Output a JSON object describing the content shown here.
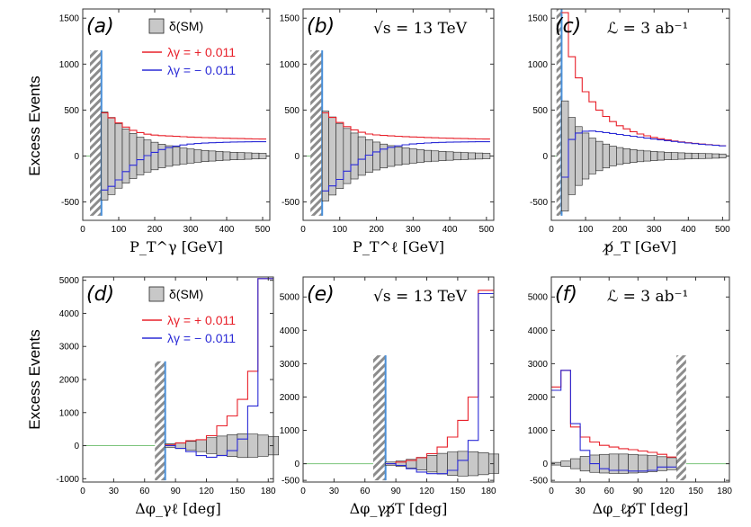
{
  "y_axis_label": "Excess Events",
  "legend": {
    "sm": "δ(SM)",
    "plus": "λγ = + 0.011",
    "minus": "λγ = − 0.011",
    "plus_color": "#e8202a",
    "minus_color": "#2b2bd6",
    "band_color": "#c8c8c8"
  },
  "chart_data": [
    {
      "id": "a",
      "type": "histogram",
      "panel_label": "(a)",
      "annotation": "",
      "xlabel": "P_T^γ [GeV]",
      "xlim": [
        0,
        520
      ],
      "ylim": [
        -700,
        1600
      ],
      "xticks": [
        0,
        100,
        200,
        300,
        400,
        500
      ],
      "yticks": [
        -500,
        0,
        500,
        1000,
        1500
      ],
      "cut_region": [
        20,
        52
      ],
      "cut_line": 52,
      "hatch_ylim": [
        -650,
        1150
      ],
      "bin_edges": [
        52,
        70,
        90,
        110,
        130,
        150,
        170,
        190,
        210,
        230,
        250,
        270,
        290,
        310,
        330,
        350,
        370,
        390,
        410,
        430,
        450,
        470,
        490,
        510
      ],
      "sm_band": [
        480,
        420,
        350,
        295,
        245,
        205,
        175,
        150,
        128,
        112,
        98,
        87,
        77,
        68,
        61,
        55,
        50,
        45,
        41,
        38,
        35,
        32,
        30
      ],
      "plus": [
        470,
        415,
        360,
        315,
        280,
        255,
        238,
        228,
        222,
        218,
        214,
        210,
        206,
        203,
        200,
        198,
        196,
        194,
        192,
        190,
        188,
        186,
        185
      ],
      "minus": [
        -370,
        -330,
        -260,
        -170,
        -100,
        -40,
        5,
        40,
        70,
        92,
        108,
        120,
        130,
        136,
        141,
        145,
        148,
        150,
        152,
        153,
        154,
        155,
        155
      ],
      "show_legend": true
    },
    {
      "id": "b",
      "type": "histogram",
      "panel_label": "(b)",
      "annotation": "√s = 13 TeV",
      "xlabel": "P_T^ℓ [GeV]",
      "xlim": [
        0,
        520
      ],
      "ylim": [
        -700,
        1600
      ],
      "xticks": [
        0,
        100,
        200,
        300,
        400,
        500
      ],
      "yticks": [
        -500,
        0,
        500,
        1000,
        1500
      ],
      "cut_region": [
        20,
        52
      ],
      "cut_line": 52,
      "hatch_ylim": [
        -650,
        1150
      ],
      "bin_edges": [
        52,
        70,
        90,
        110,
        130,
        150,
        170,
        190,
        210,
        230,
        250,
        270,
        290,
        310,
        330,
        350,
        370,
        390,
        410,
        430,
        450,
        470,
        490,
        510
      ],
      "sm_band": [
        490,
        425,
        355,
        300,
        250,
        210,
        178,
        152,
        130,
        113,
        99,
        88,
        78,
        69,
        62,
        56,
        50,
        46,
        42,
        38,
        35,
        33,
        30
      ],
      "plus": [
        470,
        420,
        365,
        320,
        285,
        258,
        240,
        230,
        224,
        219,
        215,
        211,
        207,
        204,
        201,
        198,
        196,
        194,
        192,
        190,
        188,
        186,
        185
      ],
      "minus": [
        -380,
        -325,
        -255,
        -165,
        -95,
        -35,
        10,
        45,
        75,
        95,
        110,
        122,
        131,
        137,
        142,
        146,
        149,
        151,
        152,
        153,
        154,
        155,
        155
      ],
      "show_legend": false
    },
    {
      "id": "c",
      "type": "histogram",
      "panel_label": "(c)",
      "annotation": "ℒ = 3 ab⁻¹",
      "xlabel": "p̸_T [GeV]",
      "xlim": [
        0,
        520
      ],
      "ylim": [
        -700,
        1600
      ],
      "xticks": [
        0,
        100,
        200,
        300,
        400,
        500
      ],
      "yticks": [
        -500,
        0,
        500,
        1000,
        1500
      ],
      "cut_region": [
        15,
        30
      ],
      "cut_line": 30,
      "hatch_ylim": [
        -650,
        1600
      ],
      "bin_edges": [
        30,
        50,
        70,
        90,
        110,
        130,
        150,
        170,
        190,
        210,
        230,
        250,
        270,
        290,
        310,
        330,
        350,
        370,
        390,
        410,
        430,
        450,
        470,
        490,
        510
      ],
      "sm_band": [
        600,
        420,
        320,
        250,
        195,
        160,
        130,
        108,
        92,
        80,
        70,
        62,
        55,
        50,
        45,
        41,
        38,
        35,
        32,
        30,
        28,
        26,
        24,
        22
      ],
      "plus": [
        1560,
        1080,
        850,
        700,
        590,
        500,
        430,
        375,
        330,
        295,
        265,
        240,
        220,
        202,
        188,
        175,
        163,
        153,
        145,
        138,
        130,
        124,
        118,
        112
      ],
      "minus": [
        -230,
        180,
        250,
        270,
        272,
        265,
        255,
        245,
        235,
        225,
        215,
        205,
        195,
        185,
        176,
        167,
        158,
        150,
        142,
        135,
        128,
        122,
        116,
        110
      ],
      "show_legend": false
    },
    {
      "id": "d",
      "type": "histogram",
      "panel_label": "(d)",
      "annotation": "",
      "xlabel": "Δφ_γℓ [deg]",
      "xlim": [
        0,
        185
      ],
      "ylim": [
        -1100,
        5100
      ],
      "xticks": [
        0,
        30,
        60,
        90,
        120,
        150,
        180
      ],
      "yticks": [
        -1000,
        0,
        1000,
        2000,
        3000,
        4000,
        5000
      ],
      "cut_region": [
        70,
        80
      ],
      "cut_line": 80,
      "hatch_ylim": [
        -1050,
        2550
      ],
      "bin_edges": [
        80,
        90,
        100,
        110,
        120,
        130,
        140,
        150,
        160,
        170,
        180,
        190
      ],
      "sm_band": [
        60,
        90,
        130,
        180,
        240,
        290,
        330,
        360,
        350,
        320,
        280
      ],
      "plus": [
        20,
        80,
        150,
        180,
        300,
        600,
        900,
        1400,
        2250,
        5050,
        5050
      ],
      "minus": [
        0,
        -80,
        -180,
        -300,
        -350,
        -300,
        -150,
        200,
        1200,
        5050,
        5050
      ],
      "show_legend": true
    },
    {
      "id": "e",
      "type": "histogram",
      "panel_label": "(e)",
      "annotation": "√s = 13 TeV",
      "xlabel": "Δφ_γp̸T [deg]",
      "xlim": [
        0,
        185
      ],
      "ylim": [
        -550,
        5600
      ],
      "xticks": [
        0,
        30,
        60,
        90,
        120,
        150,
        180
      ],
      "yticks": [
        -500,
        0,
        1000,
        2000,
        3000,
        4000,
        5000
      ],
      "cut_region": [
        68,
        80
      ],
      "cut_line": 80,
      "hatch_ylim": [
        -500,
        3250
      ],
      "bin_edges": [
        80,
        90,
        100,
        110,
        120,
        130,
        140,
        150,
        160,
        170,
        180,
        190
      ],
      "sm_band": [
        50,
        80,
        130,
        190,
        250,
        310,
        350,
        370,
        360,
        330,
        290
      ],
      "plus": [
        0,
        50,
        100,
        180,
        300,
        500,
        800,
        1300,
        2000,
        5200,
        5200
      ],
      "minus": [
        0,
        -50,
        -150,
        -250,
        -300,
        -300,
        -200,
        100,
        700,
        5100,
        5100
      ],
      "show_legend": false
    },
    {
      "id": "f",
      "type": "histogram",
      "panel_label": "(f)",
      "annotation": "ℒ = 3 ab⁻¹",
      "xlabel": "Δφ_ℓp̸T [deg]",
      "xlim": [
        0,
        185
      ],
      "ylim": [
        -550,
        5600
      ],
      "xticks": [
        0,
        30,
        60,
        90,
        120,
        150,
        180
      ],
      "yticks": [
        -500,
        0,
        1000,
        2000,
        3000,
        4000,
        5000
      ],
      "cut_region": [
        130,
        140
      ],
      "cut_line": 0,
      "hatch_ylim": [
        -500,
        3250
      ],
      "bin_edges": [
        0,
        10,
        20,
        30,
        40,
        50,
        60,
        70,
        80,
        90,
        100,
        110,
        120,
        130
      ],
      "sm_band": [
        40,
        80,
        150,
        220,
        260,
        280,
        290,
        290,
        280,
        260,
        240,
        210,
        180
      ],
      "plus": [
        2300,
        2800,
        1100,
        800,
        650,
        550,
        500,
        450,
        420,
        380,
        340,
        280,
        200
      ],
      "minus": [
        2200,
        2800,
        1200,
        400,
        0,
        -150,
        -200,
        -200,
        -220,
        -220,
        -200,
        -100,
        -100
      ],
      "show_legend": false
    }
  ]
}
